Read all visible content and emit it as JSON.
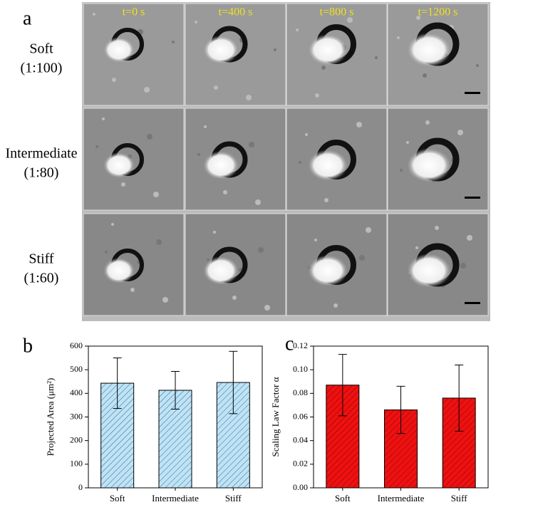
{
  "figure_a": {
    "label": "a",
    "time_labels": [
      "t=0 s",
      "t=400 s",
      "t=800 s",
      "t=1200 s"
    ],
    "rows": [
      {
        "name": "Soft",
        "ratio": "(1:100)"
      },
      {
        "name": "Intermediate",
        "ratio": "(1:80)"
      },
      {
        "name": "Stiff",
        "ratio": "(1:60)"
      }
    ]
  },
  "chart_data": [
    {
      "type": "bar",
      "panel_label": "b",
      "y_label": "Projected Area (μm²)",
      "categories": [
        "Soft",
        "Intermediate",
        "Stiff"
      ],
      "values": [
        443,
        413,
        446
      ],
      "errors": [
        107,
        80,
        132
      ],
      "color": "#bfe3f5",
      "hatch_color": "#2a6a94",
      "ylim": [
        0,
        600
      ],
      "yticks": [
        0,
        100,
        200,
        300,
        400,
        500,
        600
      ]
    },
    {
      "type": "bar",
      "panel_label": "c",
      "y_label": "Scaling Law Factor α",
      "categories": [
        "Soft",
        "Intermediate",
        "Stiff"
      ],
      "values": [
        0.087,
        0.066,
        0.076
      ],
      "errors": [
        0.026,
        0.02,
        0.028
      ],
      "color": "#ee1111",
      "hatch_color": "#8a0000",
      "ylim": [
        0,
        0.12
      ],
      "yticks": [
        {
          "value": 0,
          "label": "0.00"
        },
        0.02,
        0.04,
        0.06,
        0.08,
        {
          "value": 0.1,
          "label": "0.10"
        },
        0.12
      ]
    }
  ]
}
